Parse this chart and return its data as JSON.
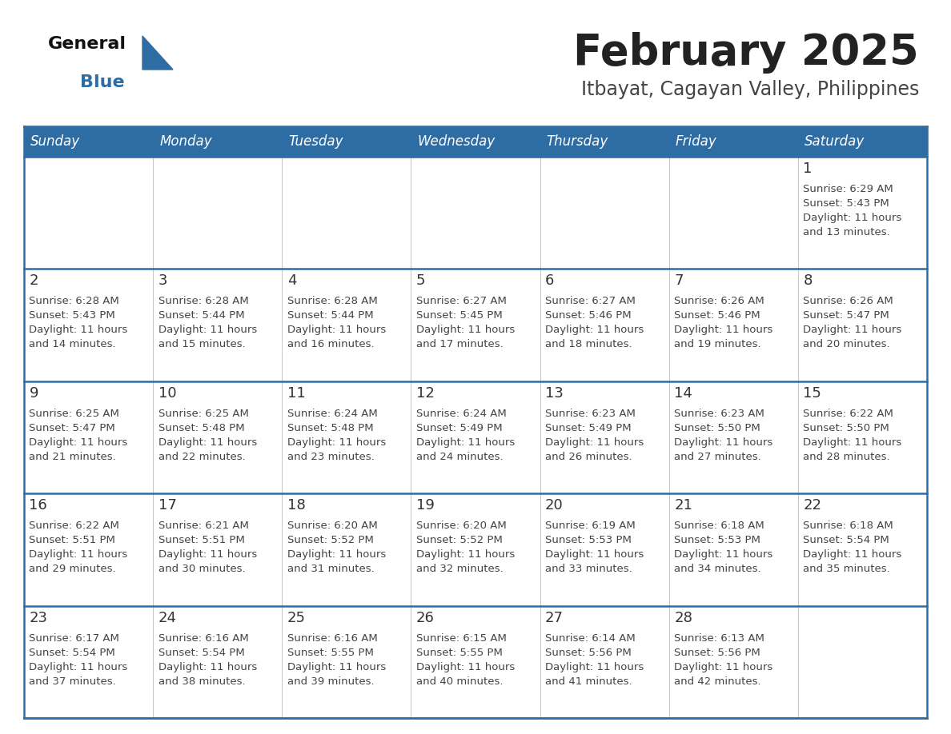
{
  "title": "February 2025",
  "subtitle": "Itbayat, Cagayan Valley, Philippines",
  "days_of_week": [
    "Sunday",
    "Monday",
    "Tuesday",
    "Wednesday",
    "Thursday",
    "Friday",
    "Saturday"
  ],
  "header_bg": "#2E6DA4",
  "header_text": "#FFFFFF",
  "cell_bg": "#FFFFFF",
  "row1_bg": "#F0F0F0",
  "separator_color": "#2E6DA4",
  "text_color": "#444444",
  "day_number_color": "#333333",
  "title_color": "#222222",
  "subtitle_color": "#444444",
  "logo_general_color": "#111111",
  "logo_blue_color": "#2E6DA4",
  "calendar_data": [
    [
      null,
      null,
      null,
      null,
      null,
      null,
      {
        "day": 1,
        "sunrise": "6:29 AM",
        "sunset": "5:43 PM",
        "daylight": "11 hours and 13 minutes."
      }
    ],
    [
      {
        "day": 2,
        "sunrise": "6:28 AM",
        "sunset": "5:43 PM",
        "daylight": "11 hours and 14 minutes."
      },
      {
        "day": 3,
        "sunrise": "6:28 AM",
        "sunset": "5:44 PM",
        "daylight": "11 hours and 15 minutes."
      },
      {
        "day": 4,
        "sunrise": "6:28 AM",
        "sunset": "5:44 PM",
        "daylight": "11 hours and 16 minutes."
      },
      {
        "day": 5,
        "sunrise": "6:27 AM",
        "sunset": "5:45 PM",
        "daylight": "11 hours and 17 minutes."
      },
      {
        "day": 6,
        "sunrise": "6:27 AM",
        "sunset": "5:46 PM",
        "daylight": "11 hours and 18 minutes."
      },
      {
        "day": 7,
        "sunrise": "6:26 AM",
        "sunset": "5:46 PM",
        "daylight": "11 hours and 19 minutes."
      },
      {
        "day": 8,
        "sunrise": "6:26 AM",
        "sunset": "5:47 PM",
        "daylight": "11 hours and 20 minutes."
      }
    ],
    [
      {
        "day": 9,
        "sunrise": "6:25 AM",
        "sunset": "5:47 PM",
        "daylight": "11 hours and 21 minutes."
      },
      {
        "day": 10,
        "sunrise": "6:25 AM",
        "sunset": "5:48 PM",
        "daylight": "11 hours and 22 minutes."
      },
      {
        "day": 11,
        "sunrise": "6:24 AM",
        "sunset": "5:48 PM",
        "daylight": "11 hours and 23 minutes."
      },
      {
        "day": 12,
        "sunrise": "6:24 AM",
        "sunset": "5:49 PM",
        "daylight": "11 hours and 24 minutes."
      },
      {
        "day": 13,
        "sunrise": "6:23 AM",
        "sunset": "5:49 PM",
        "daylight": "11 hours and 26 minutes."
      },
      {
        "day": 14,
        "sunrise": "6:23 AM",
        "sunset": "5:50 PM",
        "daylight": "11 hours and 27 minutes."
      },
      {
        "day": 15,
        "sunrise": "6:22 AM",
        "sunset": "5:50 PM",
        "daylight": "11 hours and 28 minutes."
      }
    ],
    [
      {
        "day": 16,
        "sunrise": "6:22 AM",
        "sunset": "5:51 PM",
        "daylight": "11 hours and 29 minutes."
      },
      {
        "day": 17,
        "sunrise": "6:21 AM",
        "sunset": "5:51 PM",
        "daylight": "11 hours and 30 minutes."
      },
      {
        "day": 18,
        "sunrise": "6:20 AM",
        "sunset": "5:52 PM",
        "daylight": "11 hours and 31 minutes."
      },
      {
        "day": 19,
        "sunrise": "6:20 AM",
        "sunset": "5:52 PM",
        "daylight": "11 hours and 32 minutes."
      },
      {
        "day": 20,
        "sunrise": "6:19 AM",
        "sunset": "5:53 PM",
        "daylight": "11 hours and 33 minutes."
      },
      {
        "day": 21,
        "sunrise": "6:18 AM",
        "sunset": "5:53 PM",
        "daylight": "11 hours and 34 minutes."
      },
      {
        "day": 22,
        "sunrise": "6:18 AM",
        "sunset": "5:54 PM",
        "daylight": "11 hours and 35 minutes."
      }
    ],
    [
      {
        "day": 23,
        "sunrise": "6:17 AM",
        "sunset": "5:54 PM",
        "daylight": "11 hours and 37 minutes."
      },
      {
        "day": 24,
        "sunrise": "6:16 AM",
        "sunset": "5:54 PM",
        "daylight": "11 hours and 38 minutes."
      },
      {
        "day": 25,
        "sunrise": "6:16 AM",
        "sunset": "5:55 PM",
        "daylight": "11 hours and 39 minutes."
      },
      {
        "day": 26,
        "sunrise": "6:15 AM",
        "sunset": "5:55 PM",
        "daylight": "11 hours and 40 minutes."
      },
      {
        "day": 27,
        "sunrise": "6:14 AM",
        "sunset": "5:56 PM",
        "daylight": "11 hours and 41 minutes."
      },
      {
        "day": 28,
        "sunrise": "6:13 AM",
        "sunset": "5:56 PM",
        "daylight": "11 hours and 42 minutes."
      },
      null
    ]
  ]
}
